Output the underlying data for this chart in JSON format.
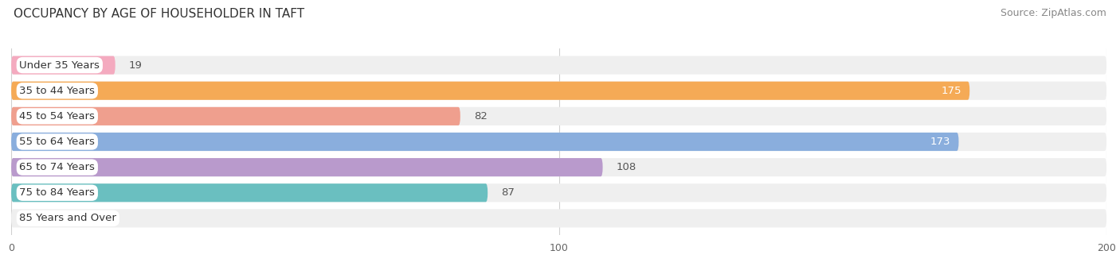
{
  "title": "OCCUPANCY BY AGE OF HOUSEHOLDER IN TAFT",
  "source": "Source: ZipAtlas.com",
  "categories": [
    "Under 35 Years",
    "35 to 44 Years",
    "45 to 54 Years",
    "55 to 64 Years",
    "65 to 74 Years",
    "75 to 84 Years",
    "85 Years and Over"
  ],
  "values": [
    19,
    175,
    82,
    173,
    108,
    87,
    0
  ],
  "bar_colors": [
    "#F4AABF",
    "#F5AA56",
    "#EF9F8E",
    "#8AAEDD",
    "#B99ACC",
    "#6ABFC0",
    "#B8C3EA"
  ],
  "bar_bg_color": "#EFEFEF",
  "xlim": [
    0,
    200
  ],
  "xticks": [
    0,
    100,
    200
  ],
  "bar_height": 0.72,
  "label_fontsize": 9.5,
  "title_fontsize": 11,
  "source_fontsize": 9,
  "value_color_inside": "#ffffff",
  "value_color_outside": "#555555",
  "background_color": "#ffffff",
  "grid_color": "#d0d0d0"
}
